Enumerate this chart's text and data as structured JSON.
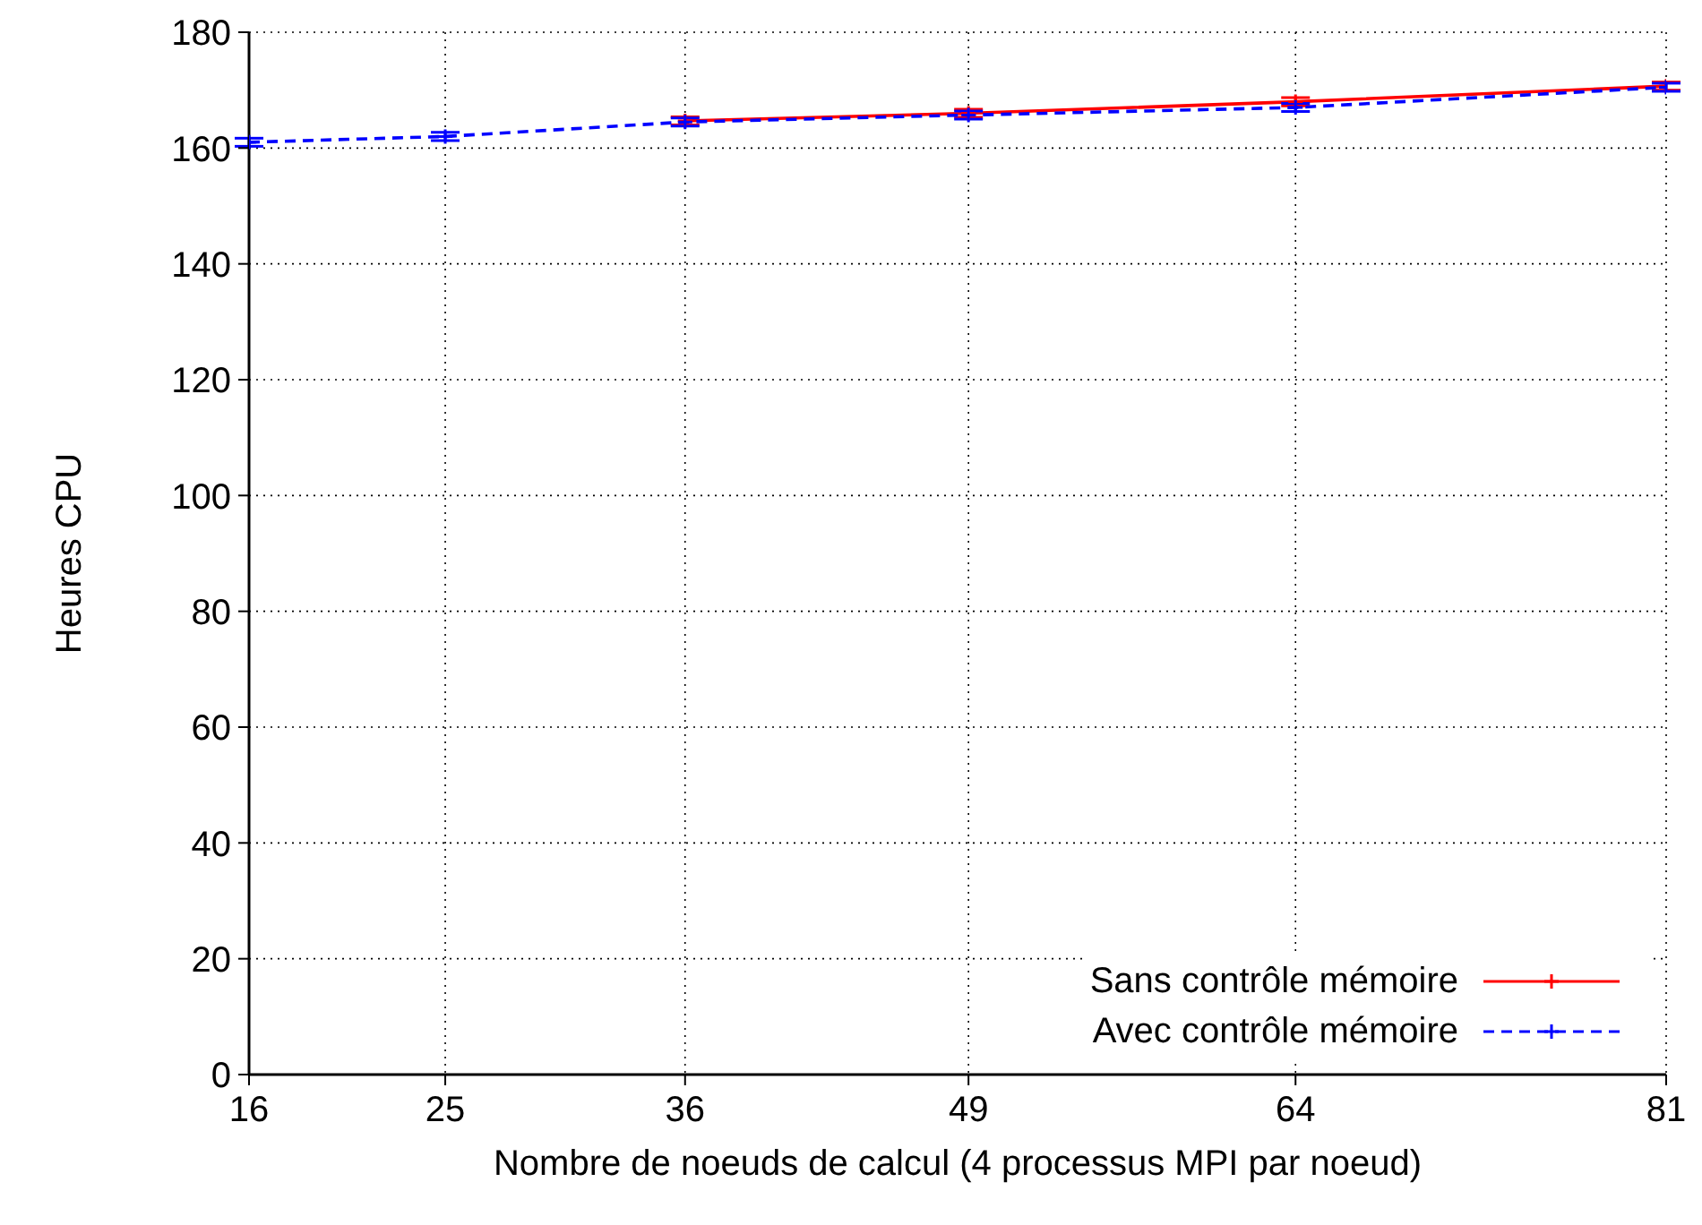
{
  "chart_data": {
    "type": "line",
    "xlabel": "Nombre de noeuds de calcul (4 processus MPI par noeud)",
    "ylabel": "Heures CPU",
    "xlim": [
      16,
      81
    ],
    "xticks": [
      16,
      25,
      36,
      49,
      64,
      81
    ],
    "ylim": [
      0,
      180
    ],
    "yticks": [
      0,
      20,
      40,
      60,
      80,
      100,
      120,
      140,
      160,
      180
    ],
    "grid": true,
    "legend": "bottom right",
    "marker": "cross",
    "series": [
      {
        "name": "Sans contrôle mémoire",
        "color": "#ff0000",
        "line_style": "solid",
        "x": [
          36,
          49,
          64,
          81
        ],
        "values": [
          164.7,
          166,
          168,
          170.7
        ],
        "errors": [
          0.7,
          0.7,
          0.7,
          0.7
        ]
      },
      {
        "name": "Avec contrôle mémoire",
        "color": "#0000ff",
        "line_style": "dashed",
        "x": [
          16,
          25,
          36,
          49,
          64,
          81
        ],
        "values": [
          161,
          162,
          164.5,
          165.7,
          167,
          170.5
        ],
        "errors": [
          0.7,
          0.7,
          0.7,
          0.7,
          0.7,
          0.7
        ]
      }
    ]
  }
}
